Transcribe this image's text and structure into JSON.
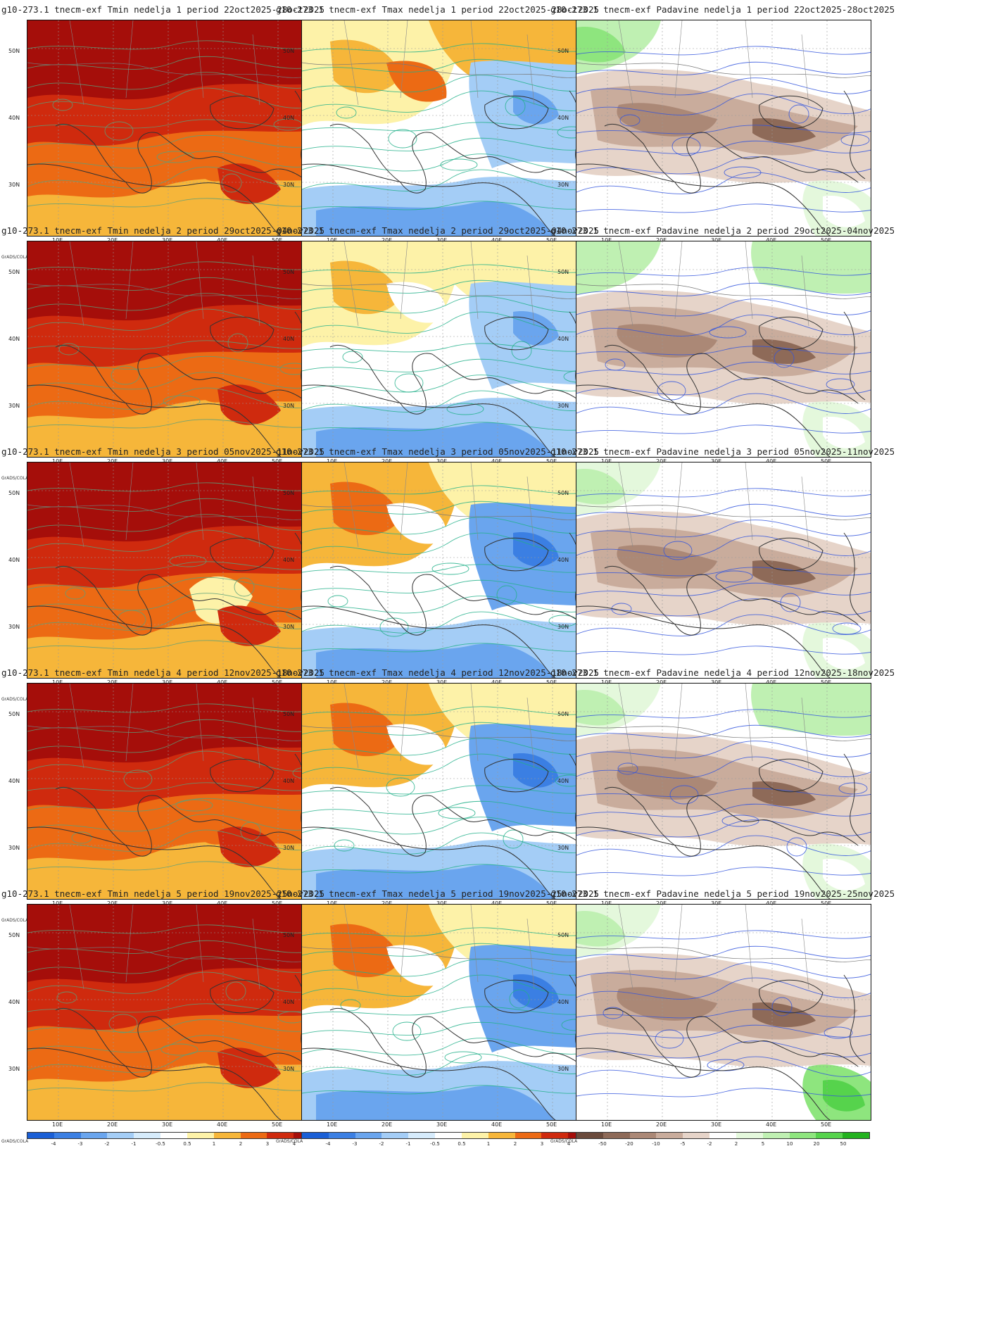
{
  "panels": [
    {
      "title": "g10-273.1 tnecm-exf Tmin nedelja 1 period 22oct2025-28oct2025",
      "variable": "tmin",
      "week": 1
    },
    {
      "title": "g10-273.1 tnecm-exf Tmax nedelja 1 period 22oct2025-28oct2025",
      "variable": "tmax",
      "week": 1
    },
    {
      "title": "g10-273.1 tnecm-exf Padavine nedelja 1 period 22oct2025-28oct2025",
      "variable": "precip",
      "week": 1
    },
    {
      "title": "g10-273.1 tnecm-exf Tmin nedelja 2 period 29oct2025-04nov2025",
      "variable": "tmin",
      "week": 2
    },
    {
      "title": "g10-273.1 tnecm-exf Tmax nedelja 2 period 29oct2025-04nov2025",
      "variable": "tmax",
      "week": 2
    },
    {
      "title": "g10-273.1 tnecm-exf Padavine nedelja 2 period 29oct2025-04nov2025",
      "variable": "precip",
      "week": 2
    },
    {
      "title": "g10-273.1 tnecm-exf Tmin nedelja 3 period 05nov2025-11nov2025",
      "variable": "tmin",
      "week": 3
    },
    {
      "title": "g10-273.1 tnecm-exf Tmax nedelja 3 period 05nov2025-11nov2025",
      "variable": "tmax",
      "week": 3
    },
    {
      "title": "g10-273.1 tnecm-exf Padavine nedelja 3 period 05nov2025-11nov2025",
      "variable": "precip",
      "week": 3
    },
    {
      "title": "g10-273.1 tnecm-exf Tmin nedelja 4 period 12nov2025-18nov2025",
      "variable": "tmin",
      "week": 4
    },
    {
      "title": "g10-273.1 tnecm-exf Tmax nedelja 4 period 12nov2025-18nov2025",
      "variable": "tmax",
      "week": 4
    },
    {
      "title": "g10-273.1 tnecm-exf Padavine nedelja 4 period 12nov2025-18nov2025",
      "variable": "precip",
      "week": 4
    },
    {
      "title": "g10-273.1 tnecm-exf Tmin nedelja 5 period 19nov2025-25nov2025",
      "variable": "tmin",
      "week": 5
    },
    {
      "title": "g10-273.1 tnecm-exf Tmax nedelja 5 period 19nov2025-25nov2025",
      "variable": "tmax",
      "week": 5
    },
    {
      "title": "g10-273.1 tnecm-exf Padavine nedelja 5 period 19nov2025-25nov2025",
      "variable": "precip",
      "week": 5
    }
  ],
  "axes": {
    "lat_labels": [
      "50N",
      "40N",
      "30N"
    ],
    "lon_labels": [
      "10E",
      "20E",
      "30E",
      "40E",
      "50E"
    ]
  },
  "grads_label": "GrADS/COLA",
  "colorbars": {
    "temperature": {
      "labels": [
        "-4",
        "-3",
        "-2",
        "-1",
        "-0.5",
        "0.5",
        "1",
        "2",
        "3",
        "4"
      ],
      "colors": [
        "#1a5fd6",
        "#3b7fe3",
        "#6aa5ee",
        "#a4cdf6",
        "#d6ebfb",
        "#ffffff",
        "#fdf2a8",
        "#f6b63a",
        "#ec6a14",
        "#cf2a0e",
        "#a50e0a"
      ]
    },
    "precip": {
      "labels": [
        "-50",
        "-20",
        "-10",
        "-5",
        "-2",
        "2",
        "5",
        "10",
        "20",
        "50"
      ],
      "colors": [
        "#6b4b3c",
        "#8e6a58",
        "#ab8876",
        "#c9ac9c",
        "#e6d4c9",
        "#ffffff",
        "#e4f8dc",
        "#bff0b2",
        "#8ee57e",
        "#56d34c",
        "#22b21e"
      ]
    }
  }
}
